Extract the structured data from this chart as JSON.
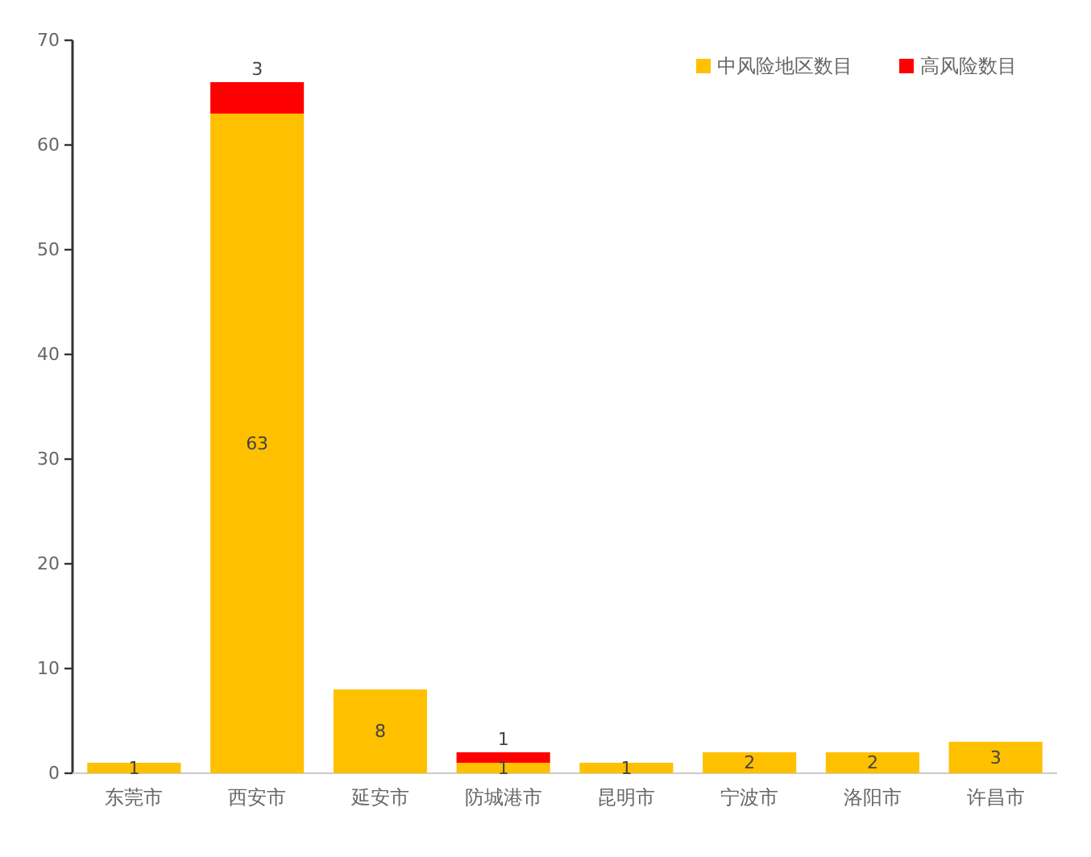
{
  "chart_data": {
    "type": "bar",
    "categories": [
      "东莞市",
      "西安市",
      "延安市",
      "防城港市",
      "昆明市",
      "宁波市",
      "洛阳市",
      "许昌市"
    ],
    "series": [
      {
        "name": "中风险地区数目",
        "color": "#ffc000",
        "values": [
          1,
          63,
          8,
          1,
          1,
          2,
          2,
          3
        ]
      },
      {
        "name": "高风险数目",
        "color": "#ff0000",
        "values": [
          null,
          3,
          null,
          1,
          null,
          null,
          null,
          null
        ]
      }
    ],
    "stacked": true,
    "ylim": [
      0,
      70
    ],
    "yticks": [
      0,
      10,
      20,
      30,
      40,
      50,
      60,
      70
    ],
    "data_labels": true,
    "legend": "top right"
  }
}
